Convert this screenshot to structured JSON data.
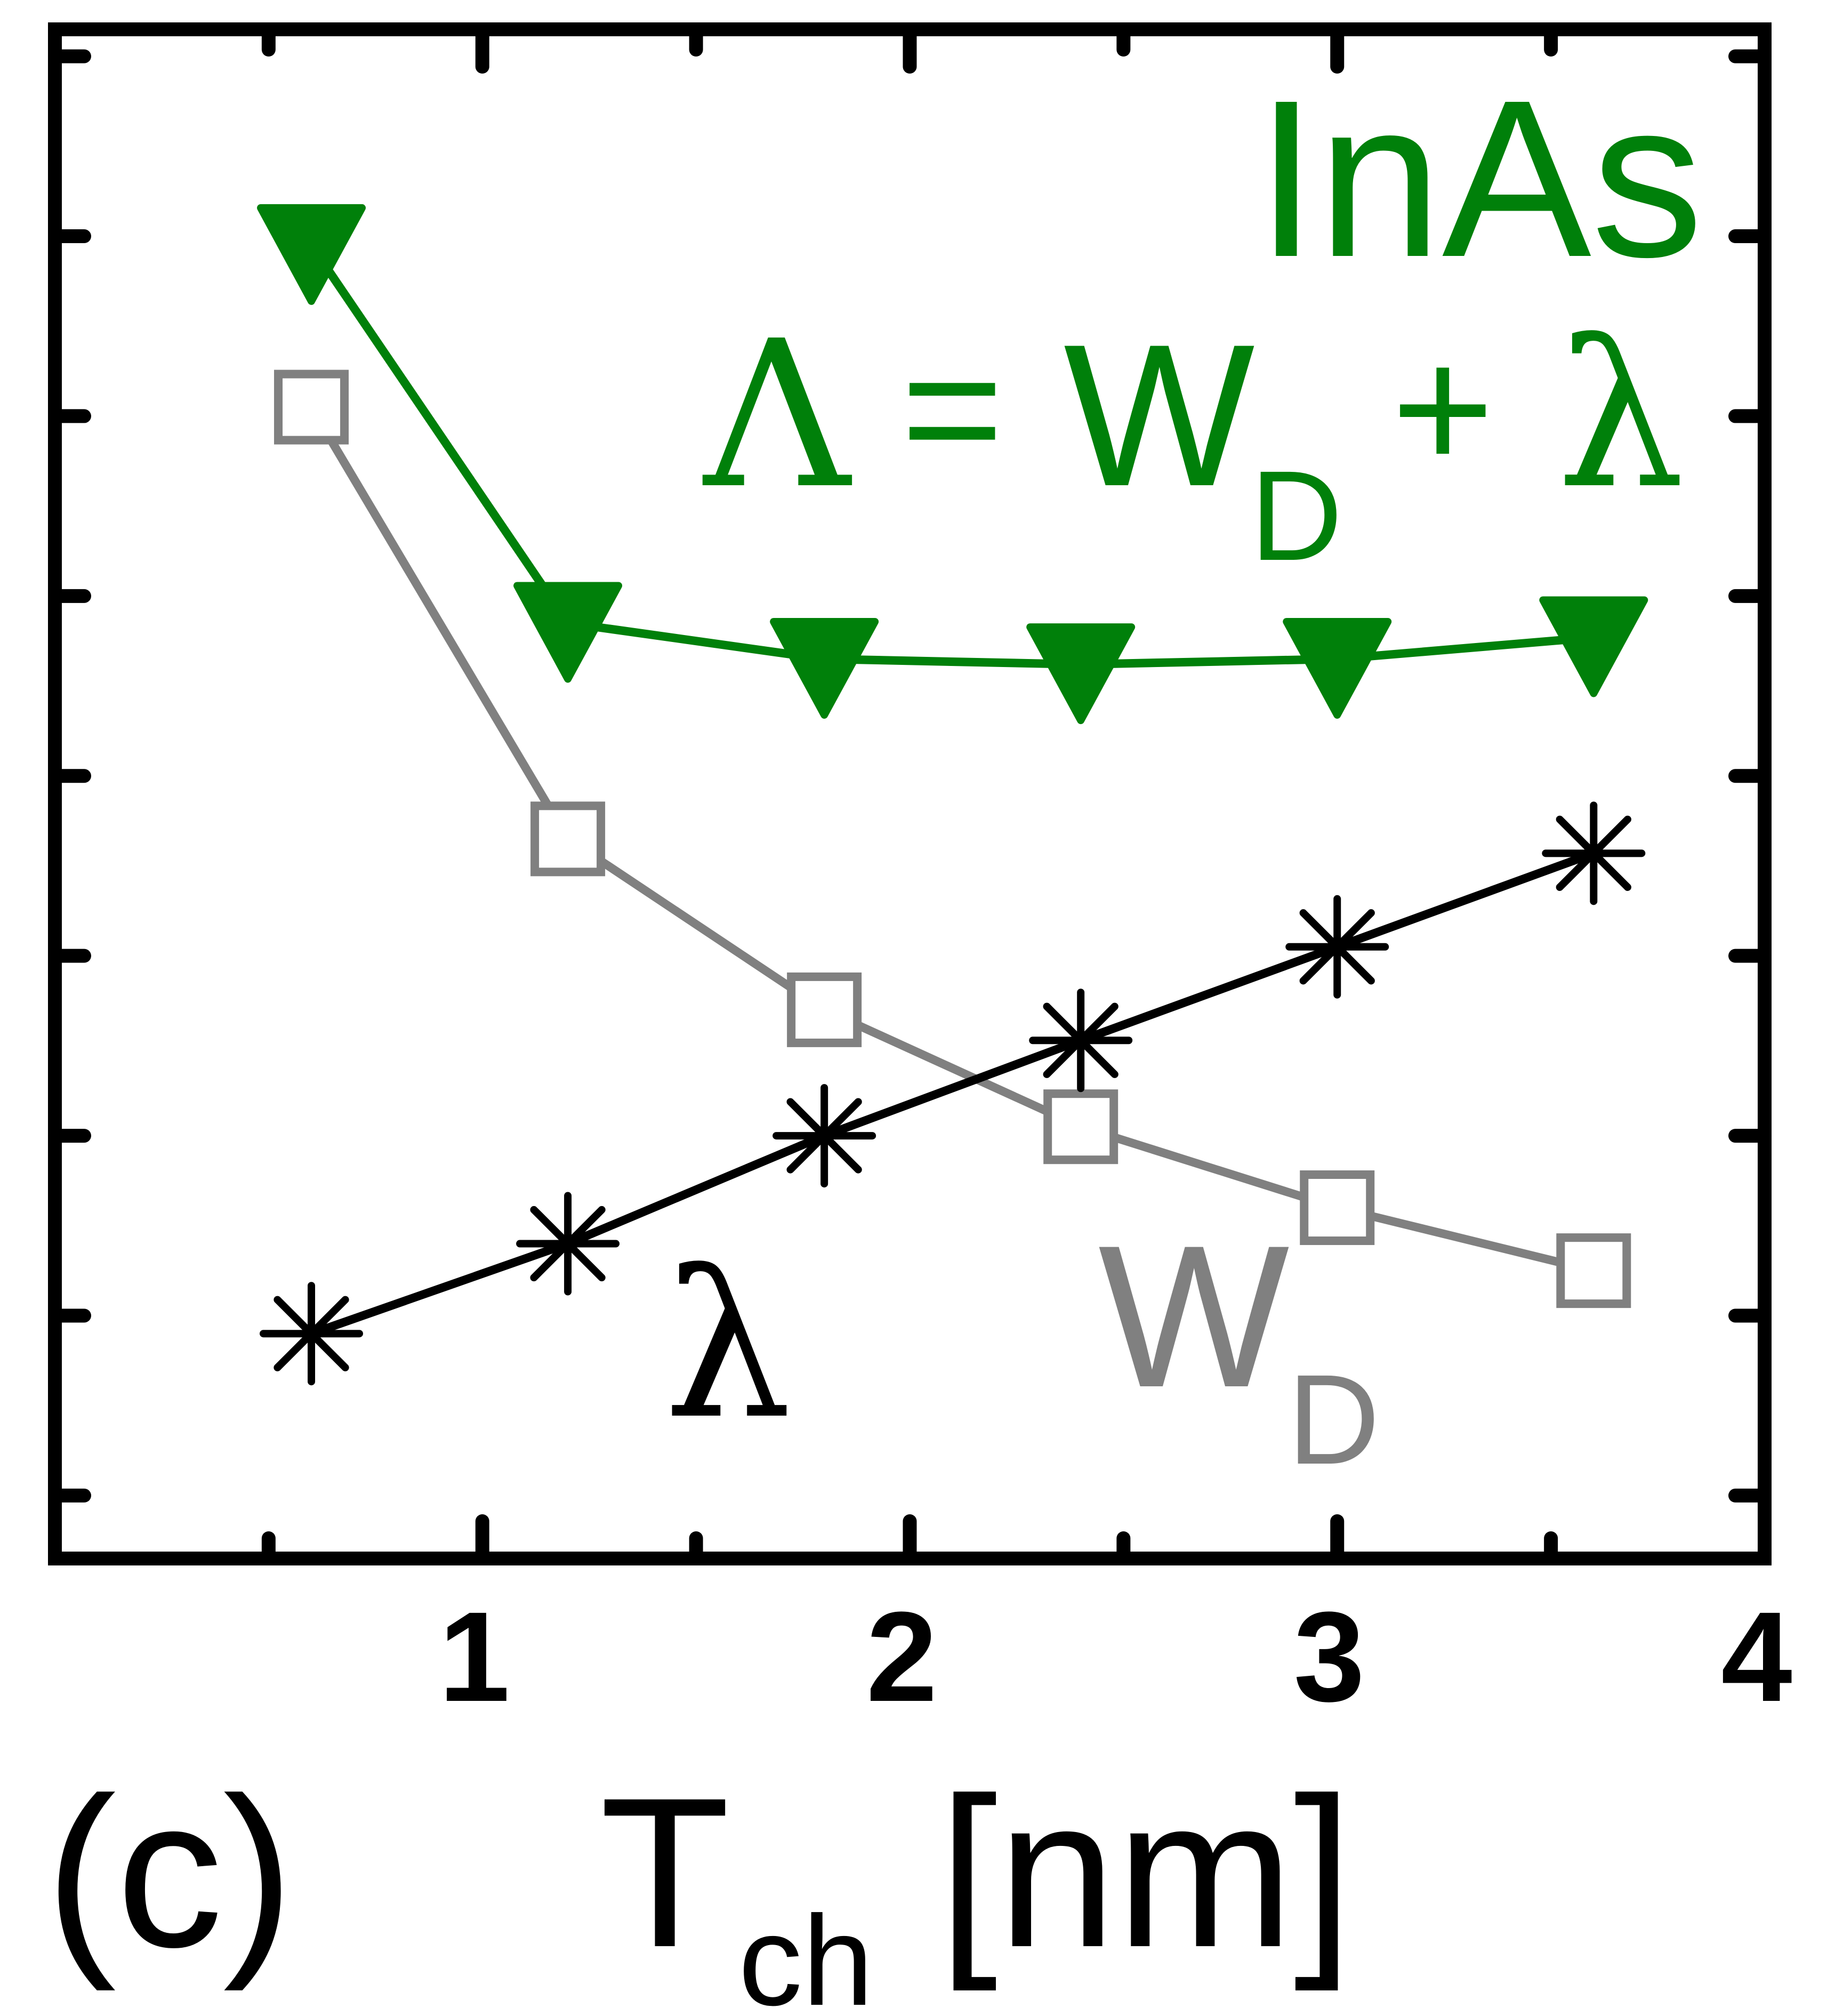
{
  "panel_label": "(c)",
  "colors": {
    "green": "#00800a",
    "gray": "#808080",
    "black": "#000000"
  },
  "chart_data": {
    "type": "line",
    "xlabel": {
      "main": "T",
      "sub": "ch",
      "unit": "[nm]"
    },
    "ylabel": "",
    "xlim": [
      0.0,
      4.0
    ],
    "ylim": [
      0,
      8.5
    ],
    "x_ticks": [
      1,
      2,
      3,
      4
    ],
    "x_tick_labels": [
      "1",
      "2",
      "3",
      "4"
    ],
    "x_minor_ticks": [
      0.5,
      1.5,
      2.5,
      3.5
    ],
    "y_ticks": [
      0.35,
      1.35,
      2.35,
      3.35,
      4.35,
      5.35,
      6.35,
      7.35,
      8.35
    ],
    "y_tick_labels_shown": false,
    "grid": false,
    "annotations": {
      "material": "InAs",
      "formula": {
        "lhs": "Λ",
        "eq": "=",
        "w": "W",
        "w_sub": "D",
        "plus": "+",
        "rhs": "λ"
      },
      "lambda_label": "λ",
      "wd_label": {
        "main": "W",
        "sub": "D"
      }
    },
    "series": [
      {
        "key": "Lambda",
        "color": "#00800a",
        "marker": "triangle-down",
        "x": [
          0.6,
          1.2,
          1.8,
          2.4,
          3.0,
          3.6
        ],
        "y": [
          7.3,
          5.2,
          5.0,
          4.97,
          5.0,
          5.12
        ]
      },
      {
        "key": "WD",
        "color": "#808080",
        "marker": "square-open",
        "x": [
          0.6,
          1.2,
          1.8,
          2.4,
          3.0,
          3.6
        ],
        "y": [
          6.4,
          4.0,
          3.05,
          2.4,
          1.95,
          1.6
        ]
      },
      {
        "key": "lambda",
        "color": "#000000",
        "marker": "asterisk",
        "x": [
          0.6,
          1.2,
          1.8,
          2.4,
          3.0,
          3.6
        ],
        "y": [
          1.25,
          1.75,
          2.35,
          2.88,
          3.4,
          3.92
        ]
      }
    ]
  }
}
